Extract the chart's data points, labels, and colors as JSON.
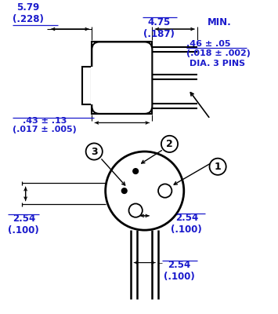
{
  "bg_color": "#ffffff",
  "line_color": "#000000",
  "text_color": "#1a1acc",
  "fig_width": 3.55,
  "fig_height": 4.0,
  "labels": {
    "dim1": "5.79\n(.228)",
    "dim2": "4.75\n(.187)",
    "min_txt": "MIN.",
    "dim3_line1": ".46 ± .05",
    "dim3_line2": "(.018 ± .002)",
    "dia": "DIA. 3 PINS",
    "dim4": ".43 ± .13\n(.017 ± .005)",
    "dim_left": "2.54\n(.100)",
    "dim_right1": "2.54\n(.100)",
    "dim_right2": "2.54\n(.100)"
  }
}
